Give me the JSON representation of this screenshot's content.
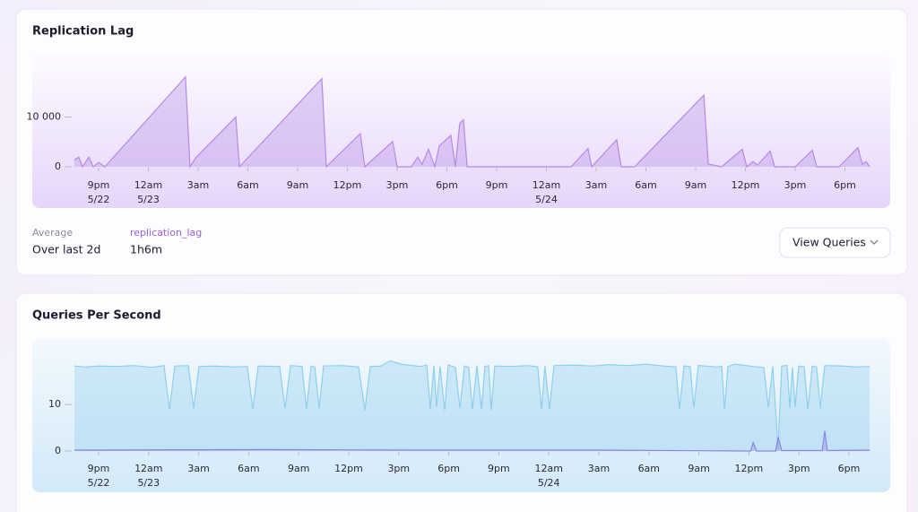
{
  "chart_data": [
    {
      "type": "area",
      "title": "Replication Lag",
      "color": "#b48ae6",
      "x": [
        -1.46,
        -1.19,
        -0.97,
        -0.59,
        -0.32,
        0,
        0.38,
        5.24,
        5.51,
        5.89,
        8.27,
        8.49,
        13.46,
        13.73,
        15.78,
        16.05,
        17.73,
        18.0,
        18.86,
        19.24,
        19.51,
        19.89,
        20.27,
        20.54,
        21.24,
        21.51,
        21.78,
        22.0,
        22.22,
        28.49,
        29.51,
        29.73,
        31.24,
        31.51,
        32.32,
        36.49,
        36.76,
        37.08,
        37.57,
        38.81,
        39.08,
        39.46,
        39.73,
        40.49,
        40.76,
        42.0,
        43.03,
        43.3,
        44.65,
        45.78,
        46.05,
        46.27,
        46.49
      ],
      "values": [
        1400,
        1930,
        0,
        1930,
        0,
        880,
        0,
        18070,
        0,
        1930,
        10000,
        0,
        17720,
        0,
        6670,
        0,
        5090,
        0,
        0,
        1930,
        530,
        3510,
        0,
        4210,
        6320,
        0,
        8770,
        9470,
        0,
        0,
        3680,
        0,
        5440,
        0,
        0,
        14390,
        530,
        350,
        0,
        3510,
        0,
        1050,
        350,
        3160,
        0,
        0,
        3330,
        0,
        0,
        3860,
        530,
        1050,
        0
      ],
      "xlim": [
        -1.5,
        46.5
      ],
      "ylim": [
        0,
        22000
      ],
      "xticks": [
        {
          "value": 0,
          "label": "9pm",
          "date": "5/22"
        },
        {
          "value": 3,
          "label": "12am",
          "date": "5/23"
        },
        {
          "value": 6,
          "label": "3am"
        },
        {
          "value": 9,
          "label": "6am"
        },
        {
          "value": 12,
          "label": "9am"
        },
        {
          "value": 15,
          "label": "12pm"
        },
        {
          "value": 18,
          "label": "3pm"
        },
        {
          "value": 21,
          "label": "6pm"
        },
        {
          "value": 24,
          "label": "9pm"
        },
        {
          "value": 27,
          "label": "12am",
          "date": "5/24"
        },
        {
          "value": 30,
          "label": "3am"
        },
        {
          "value": 33,
          "label": "6am"
        },
        {
          "value": 36,
          "label": "9am"
        },
        {
          "value": 39,
          "label": "12pm"
        },
        {
          "value": 42,
          "label": "3pm"
        },
        {
          "value": 45,
          "label": "6pm"
        }
      ],
      "yticks": [
        0,
        {
          "value": 10000,
          "label": "10 000"
        }
      ]
    },
    {
      "type": "area",
      "title": "Queries Per Second",
      "series": [
        {
          "color": "#8ecfee",
          "x": [
            -1.45,
            -0.81,
            0,
            1.08,
            2.15,
            3.23,
            3.92,
            4.25,
            4.57,
            5.38,
            5.7,
            6.02,
            6.99,
            8.06,
            8.92,
            9.25,
            9.57,
            10.86,
            11.18,
            11.51,
            12.2,
            12.47,
            12.74,
            12.96,
            13.23,
            13.49,
            14.52,
            15.59,
            15.97,
            16.29,
            16.94,
            17.47,
            18.28,
            19.35,
            19.68,
            19.89,
            20.11,
            20.27,
            20.48,
            20.75,
            20.97,
            21.4,
            21.67,
            21.94,
            22.2,
            22.42,
            22.69,
            22.96,
            23.17,
            23.39,
            23.55,
            23.76,
            24.73,
            25.81,
            26.34,
            26.56,
            26.77,
            27.04,
            27.31,
            28.49,
            29.57,
            30.65,
            31.72,
            32.8,
            33.87,
            34.62,
            34.84,
            35.11,
            35.48,
            35.7,
            35.97,
            37.1,
            37.37,
            37.53,
            37.74,
            38.17,
            39.25,
            39.89,
            40.16,
            40.43,
            40.75,
            40.97,
            41.29,
            41.45,
            41.61,
            41.77,
            41.99,
            42.31,
            42.53,
            42.8,
            43.06,
            43.28,
            43.55,
            44.62,
            45.43,
            46.24
          ],
          "values": [
            18.3,
            18.1,
            18.3,
            18.2,
            18.4,
            18.0,
            18.4,
            9.0,
            18.3,
            18.4,
            9.2,
            18.2,
            18.3,
            18.1,
            18.2,
            9.0,
            18.3,
            18.2,
            9.2,
            18.4,
            18.2,
            9.0,
            18.3,
            18.1,
            9.2,
            18.3,
            18.4,
            18.1,
            8.8,
            18.2,
            18.3,
            19.4,
            18.6,
            18.2,
            18.5,
            9.0,
            18.4,
            9.5,
            18.2,
            8.8,
            18.5,
            18.0,
            9.2,
            18.3,
            18.0,
            9.0,
            18.4,
            9.0,
            18.2,
            18.4,
            8.8,
            18.3,
            18.2,
            18.4,
            18.1,
            9.0,
            18.3,
            9.0,
            18.4,
            18.5,
            18.3,
            18.6,
            18.4,
            18.7,
            18.3,
            18.1,
            9.0,
            18.3,
            18.2,
            9.3,
            18.4,
            18.1,
            18.3,
            9.0,
            18.2,
            18.7,
            18.2,
            18.0,
            9.5,
            18.2,
            0.5,
            18.3,
            18.4,
            9.2,
            18.0,
            9.5,
            18.3,
            18.1,
            9.0,
            18.3,
            18.1,
            9.2,
            18.4,
            18.3,
            18.1,
            18.2
          ]
        },
        {
          "color": "#8a86e0",
          "x": [
            -1.45,
            10,
            20,
            30,
            39.1,
            39.25,
            39.46,
            40.6,
            40.75,
            40.97,
            43.4,
            43.55,
            43.7,
            46.24
          ],
          "values": [
            0.2,
            0.3,
            0.2,
            0.2,
            0,
            1.8,
            0,
            0,
            3.0,
            0.1,
            0.1,
            4.3,
            0.1,
            0.2
          ]
        }
      ],
      "xlim": [
        -1.5,
        46.5
      ],
      "ylim": [
        0,
        22
      ],
      "xticks": [
        {
          "value": 0,
          "label": "9pm",
          "date": "5/22"
        },
        {
          "value": 3,
          "label": "12am",
          "date": "5/23"
        },
        {
          "value": 6,
          "label": "3am"
        },
        {
          "value": 9,
          "label": "6am"
        },
        {
          "value": 12,
          "label": "9am"
        },
        {
          "value": 15,
          "label": "12pm"
        },
        {
          "value": 18,
          "label": "3pm"
        },
        {
          "value": 21,
          "label": "6pm"
        },
        {
          "value": 24,
          "label": "9pm"
        },
        {
          "value": 27,
          "label": "12am",
          "date": "5/24"
        },
        {
          "value": 30,
          "label": "3am"
        },
        {
          "value": 33,
          "label": "6am"
        },
        {
          "value": 36,
          "label": "9am"
        },
        {
          "value": 39,
          "label": "12pm"
        },
        {
          "value": 42,
          "label": "3pm"
        },
        {
          "value": 45,
          "label": "6pm"
        }
      ],
      "yticks": [
        0,
        10
      ]
    }
  ],
  "summary": {
    "label": "Average",
    "period": "Over last 2d",
    "series": "replication_lag",
    "value": "1h6m"
  },
  "button": "View Queries"
}
